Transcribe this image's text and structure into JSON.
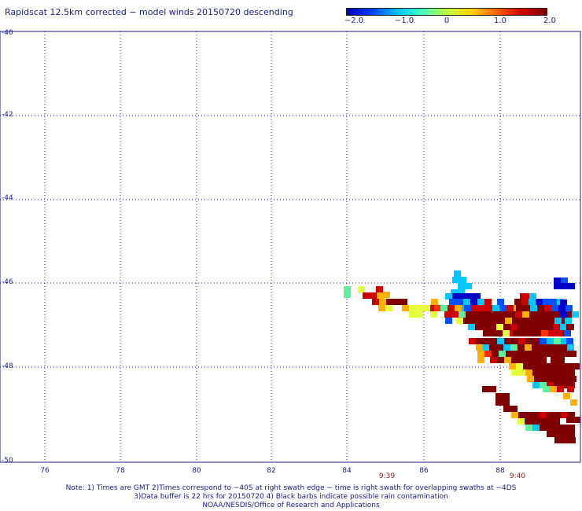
{
  "title": "Rapidscat 12.5km corrected − model winds 20150720 descending",
  "colorbar": {
    "colors": [
      "#0000b0",
      "#0040ff",
      "#00bfff",
      "#40ffbf",
      "#c0ff40",
      "#ffd000",
      "#ff6000",
      "#d00000",
      "#800000"
    ],
    "labels": [
      "−2.0",
      "−1.0",
      "0",
      "1.0",
      "2.0"
    ],
    "values": [
      -2.0,
      -1.0,
      0,
      1.0,
      2.0
    ]
  },
  "axes": {
    "y_labels": [
      "-40",
      "-42",
      "-44",
      "-46",
      "-48",
      "-50"
    ],
    "x_labels": [
      "76",
      "78",
      "80",
      "82",
      "84",
      "86",
      "88"
    ]
  },
  "times": [
    "9:39",
    "9:40"
  ],
  "notes": [
    "Note: 1) Times are GMT 2)Times correspond to −40S at right swath edge − time is right swath for overlapping swaths at −4DS",
    "3)Data buffer is 22 hrs for 20150720 4) Black barbs indicate possible rain contamination",
    "NOAA/NESDIS/Office of Research and Applications"
  ]
}
